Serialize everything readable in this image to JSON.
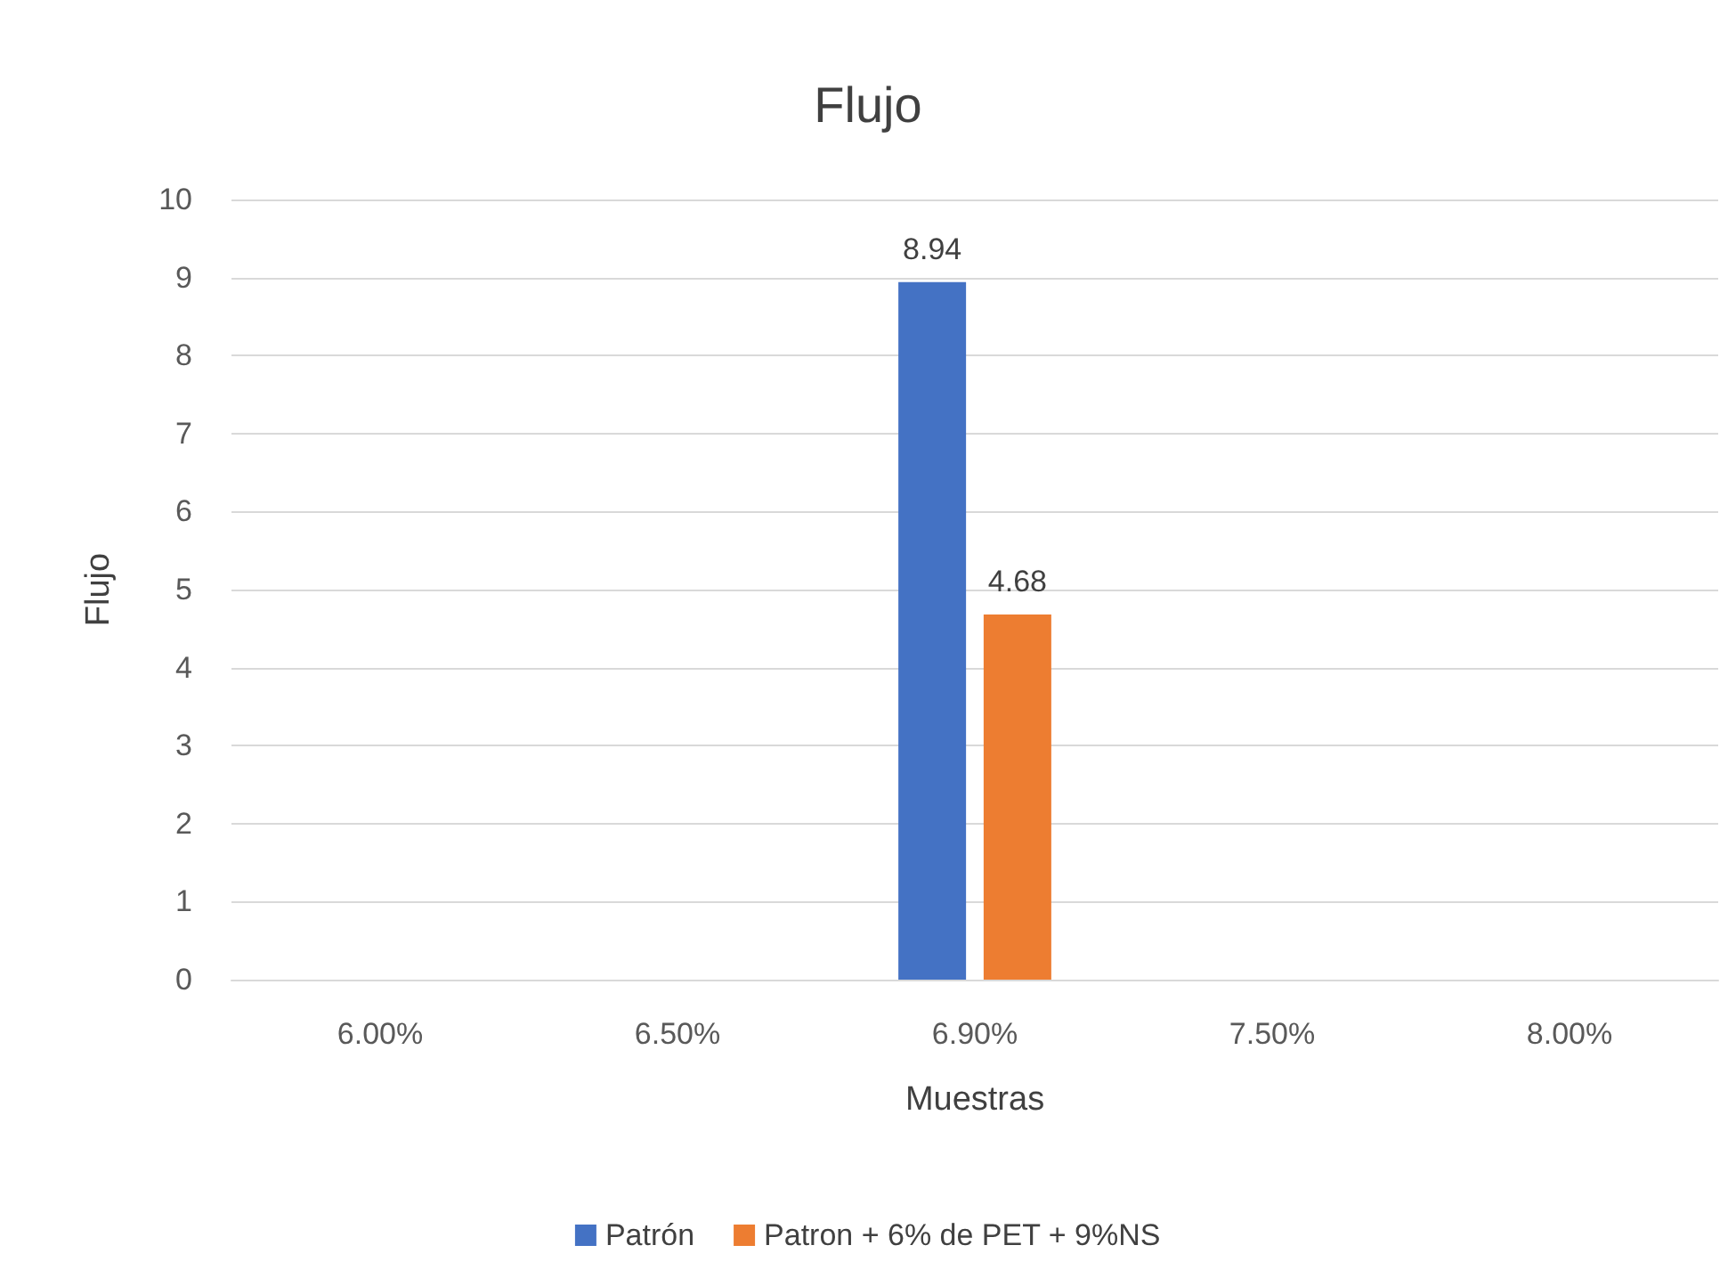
{
  "chart_data": {
    "type": "bar",
    "title": "Flujo",
    "xlabel": "Muestras",
    "ylabel": "Flujo",
    "categories": [
      "6.00%",
      "6.50%",
      "6.90%",
      "7.50%",
      "8.00%"
    ],
    "series": [
      {
        "name": "Patrón",
        "color": "#4472c4",
        "values": [
          null,
          null,
          8.94,
          null,
          null
        ]
      },
      {
        "name": "Patron + 6% de PET + 9%NS",
        "color": "#ed7d31",
        "values": [
          null,
          null,
          4.68,
          null,
          null
        ]
      }
    ],
    "ylim": [
      0,
      10
    ],
    "yticks": [
      0,
      1,
      2,
      3,
      4,
      5,
      6,
      7,
      8,
      9,
      10
    ],
    "grid": "y",
    "legend": "bottom",
    "data_labels": true
  }
}
